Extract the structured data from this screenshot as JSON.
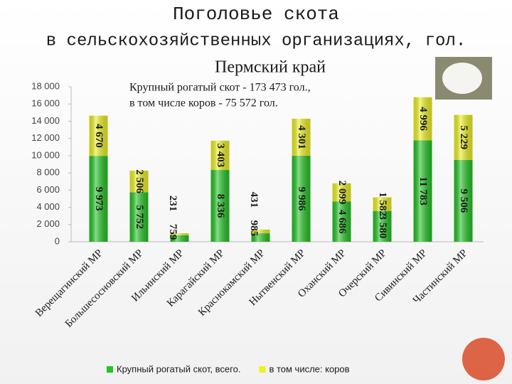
{
  "chart_data": {
    "type": "bar",
    "stacked": true,
    "title": [
      "Поголовье скота",
      "в сельскохозяйственных организациях, гол."
    ],
    "subtitle": "Пермский край",
    "annotations": [
      "Крупный рогатый скот  - 173 473 гол.,",
      "в том числе коров - 75 572 гол."
    ],
    "categories": [
      "Верещагинский МР",
      "Большесосновский МР",
      "Ильинский МР",
      "Карагайский МР",
      "Краснокамский МР",
      "Нытвенский МР",
      "Оханский МР",
      "Очерский МР",
      "Сивинский МР",
      "Частинский МР"
    ],
    "series": [
      {
        "name": "Крупный рогатый скот, всего.",
        "color": "#22c422",
        "values": [
          9973,
          5752,
          759,
          8336,
          985,
          9986,
          4686,
          3580,
          11783,
          9506
        ],
        "value_labels": [
          "9 973",
          "5 752",
          "759",
          "8 336",
          "985",
          "9 986",
          "4 686",
          "3 580",
          "11 783",
          "9 506"
        ]
      },
      {
        "name": "в том числе: коров",
        "color": "#eef21e",
        "values": [
          4670,
          2506,
          231,
          3403,
          431,
          4301,
          2099,
          1582,
          4996,
          5229
        ],
        "value_labels": [
          "4 670",
          "2 506",
          "231",
          "3 403",
          "431",
          "4 301",
          "2 099",
          "1 582",
          "4 996",
          "5 229"
        ]
      }
    ],
    "ylim": [
      0,
      18000
    ],
    "yticks": [
      0,
      {
        "value": 2000,
        "label": "2 000"
      },
      {
        "value": 4000,
        "label": "4 000"
      },
      {
        "value": 6000,
        "label": "6 000"
      },
      {
        "value": 8000,
        "label": "8 000"
      },
      {
        "value": 10000,
        "label": "10 000"
      },
      {
        "value": 12000,
        "label": "12 000"
      },
      {
        "value": 14000,
        "label": "14 000"
      },
      {
        "value": 16000,
        "label": "16 000"
      },
      {
        "value": 18000,
        "label": "18 000"
      }
    ],
    "legend": "bottom"
  }
}
